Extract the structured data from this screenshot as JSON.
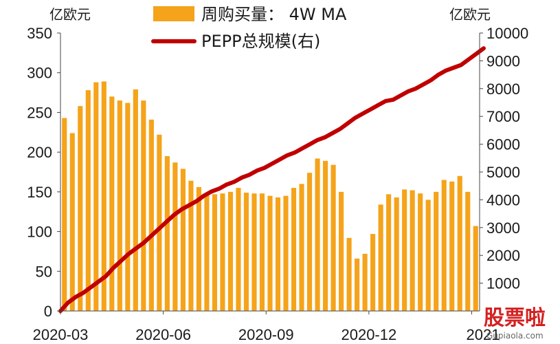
{
  "chart_data": {
    "type": "bar",
    "title": "",
    "units": {
      "left": "亿欧元",
      "right": "亿欧元"
    },
    "legend": {
      "bars_label": "周购买量：  4W MA",
      "line_label": "PEPP总规模(右)",
      "position": "top-center"
    },
    "x_ticks": [
      "2020-03",
      "2020-06",
      "2020-09",
      "2020-12",
      "2021"
    ],
    "x_tick_bar_index": [
      0,
      13,
      26,
      39,
      52
    ],
    "y_left": {
      "ticks": [
        "0",
        "50",
        "100",
        "150",
        "200",
        "250",
        "300",
        "350"
      ],
      "ylim": [
        0,
        350
      ]
    },
    "y_right": {
      "ticks": [
        "1000",
        "2000",
        "3000",
        "4000",
        "5000",
        "6000",
        "7000",
        "8000",
        "9000",
        "10000"
      ],
      "ylim": [
        0,
        10000
      ]
    },
    "series": [
      {
        "name": "周购买量：  4W MA",
        "type": "bar",
        "axis": "left",
        "color": "#f5a31a",
        "values": [
          243,
          224,
          258,
          278,
          288,
          289,
          270,
          265,
          262,
          279,
          265,
          241,
          222,
          195,
          187,
          179,
          164,
          156,
          148,
          147,
          148,
          150,
          155,
          149,
          148,
          148,
          145,
          143,
          145,
          155,
          160,
          174,
          192,
          189,
          184,
          150,
          92,
          66,
          72,
          97,
          134,
          147,
          143,
          153,
          152,
          148,
          140,
          150,
          165,
          163,
          170,
          150,
          107
        ]
      },
      {
        "name": "PEPP总规模(右)",
        "type": "line",
        "axis": "right",
        "color": "#c00000",
        "values": [
          0,
          300,
          500,
          650,
          850,
          1050,
          1250,
          1550,
          1800,
          2050,
          2250,
          2450,
          2700,
          2950,
          3200,
          3450,
          3650,
          3800,
          3950,
          4150,
          4300,
          4400,
          4550,
          4650,
          4800,
          4900,
          5050,
          5150,
          5300,
          5450,
          5600,
          5700,
          5850,
          6000,
          6150,
          6250,
          6400,
          6550,
          6750,
          6950,
          7100,
          7250,
          7400,
          7550,
          7600,
          7750,
          7900,
          8000,
          8150,
          8300,
          8500,
          8650,
          8750,
          8850,
          9050,
          9250,
          9450
        ]
      }
    ]
  },
  "watermark": {
    "main": "股票啦",
    "sub": "Gupiaola.com"
  }
}
